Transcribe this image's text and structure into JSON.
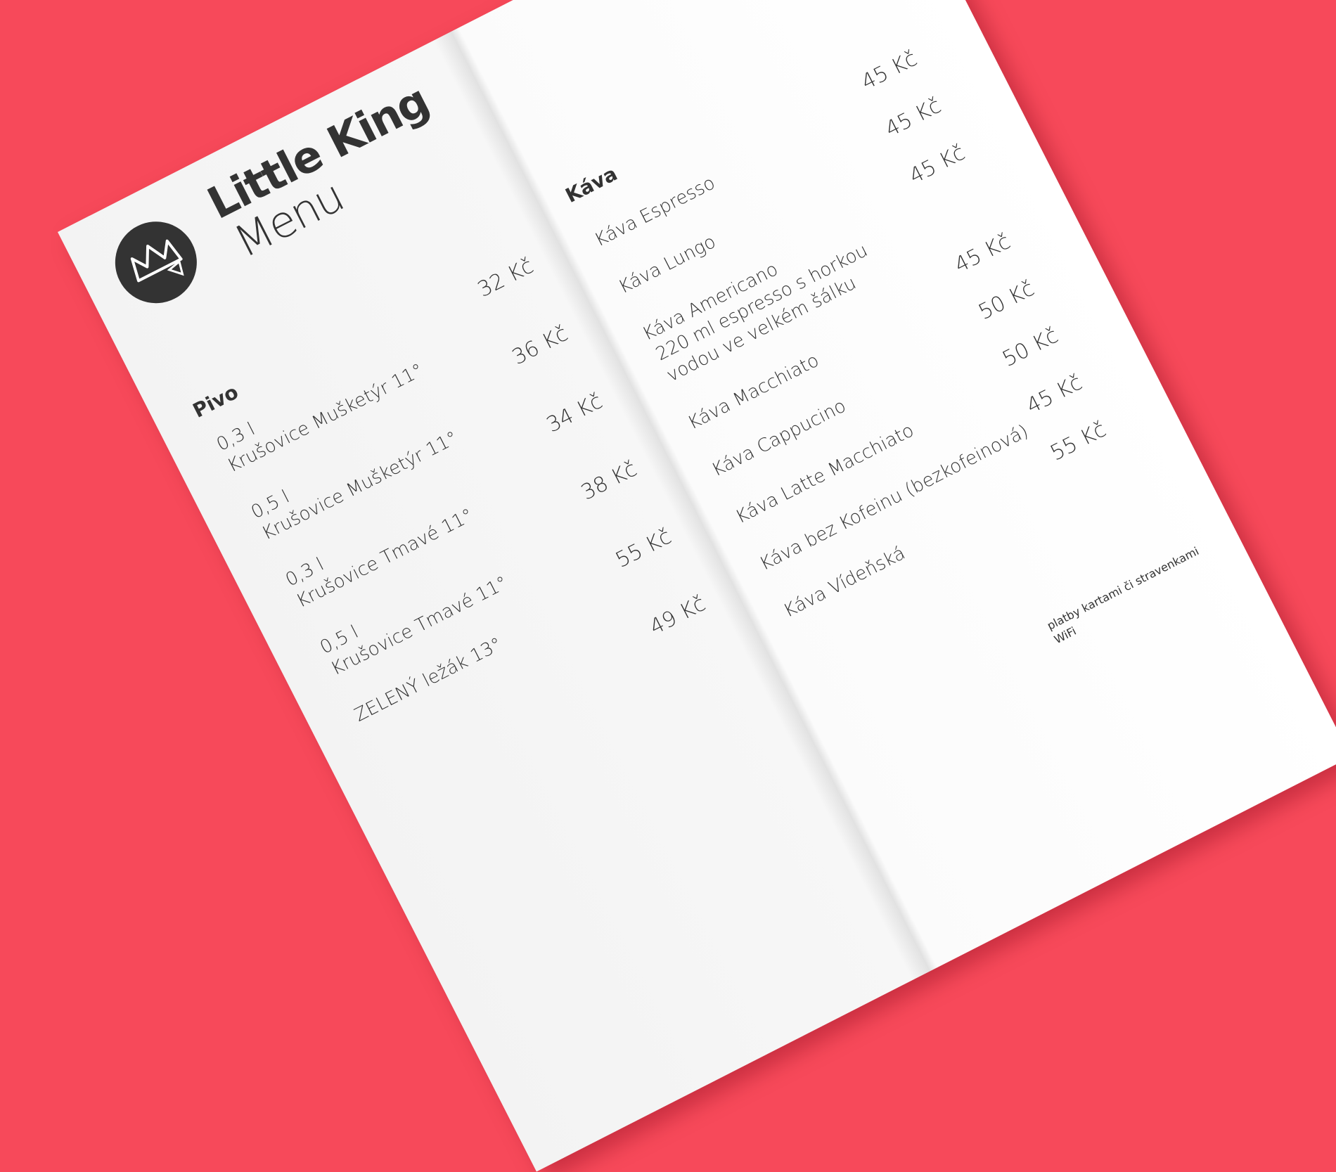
{
  "menu": {
    "title": "Little King",
    "subtitle": "Menu",
    "sections": [
      {
        "name": "Pivo",
        "items": [
          {
            "qty": "0,3 l",
            "name": "Krušovice Mušketýr 11°",
            "price": "32 Kč"
          },
          {
            "qty": "0,5 l",
            "name": "Krušovice Mušketýr 11°",
            "price": "36 Kč"
          },
          {
            "qty": "0,3 l",
            "name": "Krušovice Tmavé 11°",
            "price": "34 Kč"
          },
          {
            "qty": "0,5 l",
            "name": "Krušovice Tmavé 11°",
            "price": "38 Kč"
          },
          {
            "name": "ZELENÝ ležák 13°",
            "price": "55 Kč"
          },
          {
            "price": "49 Kč"
          }
        ]
      },
      {
        "name": "Káva",
        "items": [
          {
            "name": "Káva Espresso",
            "price": "45 Kč"
          },
          {
            "name": "Káva Lungo",
            "price": "45 Kč"
          },
          {
            "name": "Káva Americano",
            "desc": [
              "220 ml espresso s horkou",
              "vodou ve velkém šálku"
            ],
            "price": "45 Kč"
          },
          {
            "name": "Káva Macchiato",
            "price": "45 Kč"
          },
          {
            "name": "Káva Cappucino",
            "price": "50 Kč"
          },
          {
            "name": "Káva Latte Macchiato",
            "price": "50 Kč"
          },
          {
            "name": "Káva bez Kofeinu (bezkofeinová)",
            "price": "45 Kč"
          },
          {
            "name": "Káva Vídeňská",
            "price": "55 Kč"
          }
        ]
      }
    ],
    "footer": [
      "platby kartami či stravenkami",
      "WiFi"
    ]
  }
}
